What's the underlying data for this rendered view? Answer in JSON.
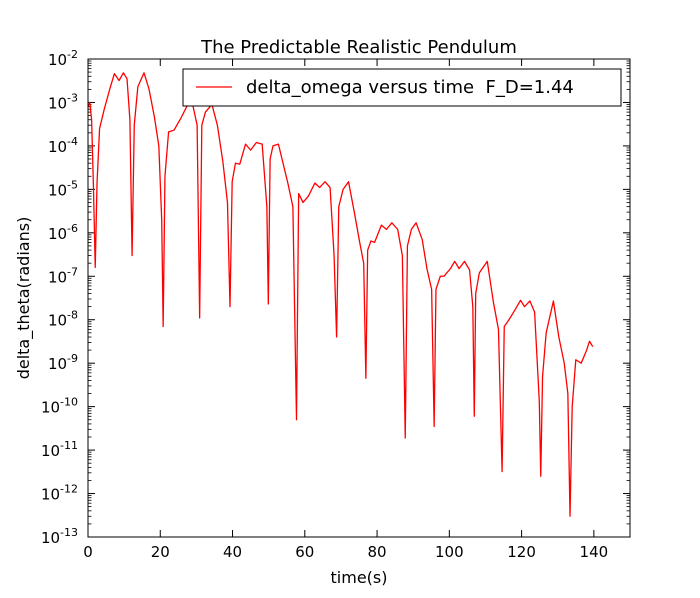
{
  "chart_data": {
    "type": "line",
    "title": "The Predictable Realistic Pendulum",
    "xlabel": "time(s)",
    "ylabel": "delta_theta(radians)",
    "xlim": [
      0,
      150
    ],
    "ylim": [
      1e-13,
      0.01
    ],
    "yscale": "log",
    "grid": false,
    "legend_position": "top-right",
    "xticks": [
      {
        "value": 0,
        "label": "0"
      },
      {
        "value": 20,
        "label": "20"
      },
      {
        "value": 40,
        "label": "40"
      },
      {
        "value": 60,
        "label": "60"
      },
      {
        "value": 80,
        "label": "80"
      },
      {
        "value": 100,
        "label": "100"
      },
      {
        "value": 120,
        "label": "120"
      },
      {
        "value": 140,
        "label": "140"
      }
    ],
    "yticks": [
      {
        "exp": -13,
        "base": "10",
        "sup": "-13"
      },
      {
        "exp": -12,
        "base": "10",
        "sup": "-12"
      },
      {
        "exp": -11,
        "base": "10",
        "sup": "-11"
      },
      {
        "exp": -10,
        "base": "10",
        "sup": "-10"
      },
      {
        "exp": -9,
        "base": "10",
        "sup": "-9"
      },
      {
        "exp": -8,
        "base": "10",
        "sup": "-8"
      },
      {
        "exp": -7,
        "base": "10",
        "sup": "-7"
      },
      {
        "exp": -6,
        "base": "10",
        "sup": "-6"
      },
      {
        "exp": -5,
        "base": "10",
        "sup": "-5"
      },
      {
        "exp": -4,
        "base": "10",
        "sup": "-4"
      },
      {
        "exp": -3,
        "base": "10",
        "sup": "-3"
      },
      {
        "exp": -2,
        "base": "10",
        "sup": "-2"
      }
    ],
    "series": [
      {
        "name": "delta_omega versus time  F_D=1.44",
        "color": "#ff0000",
        "points": [
          [
            0,
            0.0008
          ],
          [
            0.5,
            0.001
          ],
          [
            1.0,
            0.0004
          ],
          [
            1.5,
            1.2e-05
          ],
          [
            2.0,
            1.6e-07
          ],
          [
            2.5,
            1.4e-05
          ],
          [
            3.2,
            0.00025
          ],
          [
            4.5,
            0.0007
          ],
          [
            6.0,
            0.002
          ],
          [
            7.3,
            0.0046
          ],
          [
            8.6,
            0.0032
          ],
          [
            9.8,
            0.0048
          ],
          [
            10.8,
            0.0035
          ],
          [
            11.6,
            0.0004
          ],
          [
            12.2,
            3e-07
          ],
          [
            12.8,
            0.0003
          ],
          [
            13.8,
            0.0023
          ],
          [
            15.5,
            0.0048
          ],
          [
            16.9,
            0.002
          ],
          [
            18.4,
            0.00045
          ],
          [
            19.6,
            0.0001
          ],
          [
            20.4,
            2e-06
          ],
          [
            20.8,
            7e-09
          ],
          [
            21.3,
            2e-05
          ],
          [
            22.3,
            0.00021
          ],
          [
            23.8,
            0.00023
          ],
          [
            25.8,
            0.00045
          ],
          [
            27.5,
            0.00086
          ],
          [
            29.0,
            0.00087
          ],
          [
            30.2,
            0.0003
          ],
          [
            30.9,
            1.1e-08
          ],
          [
            31.5,
            0.0003
          ],
          [
            32.5,
            0.0006
          ],
          [
            34.3,
            0.0009
          ],
          [
            35.8,
            0.0003
          ],
          [
            37.3,
            4.5e-05
          ],
          [
            38.6,
            5e-06
          ],
          [
            39.3,
            2e-08
          ],
          [
            39.9,
            1.5e-05
          ],
          [
            40.8,
            4e-05
          ],
          [
            42.0,
            3.8e-05
          ],
          [
            43.6,
            0.00011
          ],
          [
            45.0,
            8e-05
          ],
          [
            46.6,
            0.00012
          ],
          [
            48.2,
            0.00011
          ],
          [
            49.5,
            4e-06
          ],
          [
            49.9,
            2.3e-08
          ],
          [
            50.4,
            5e-05
          ],
          [
            51.2,
            0.0001
          ],
          [
            52.7,
            0.00011
          ],
          [
            55.3,
            1.4e-05
          ],
          [
            56.7,
            4e-06
          ],
          [
            57.7,
            5e-11
          ],
          [
            58.3,
            8e-06
          ],
          [
            59.5,
            5e-06
          ],
          [
            61.0,
            7e-06
          ],
          [
            62.8,
            1.4e-05
          ],
          [
            64.1,
            1.1e-05
          ],
          [
            65.6,
            1.5e-05
          ],
          [
            67.0,
            1.1e-05
          ],
          [
            68.1,
            3e-07
          ],
          [
            68.8,
            4e-09
          ],
          [
            69.4,
            4e-06
          ],
          [
            70.6,
            1e-05
          ],
          [
            72.1,
            1.5e-05
          ],
          [
            73.7,
            3e-06
          ],
          [
            75.2,
            6e-07
          ],
          [
            76.3,
            2e-07
          ],
          [
            76.9,
            4.5e-10
          ],
          [
            77.4,
            4e-07
          ],
          [
            78.3,
            6.5e-07
          ],
          [
            79.3,
            6e-07
          ],
          [
            81.2,
            1.5e-06
          ],
          [
            82.6,
            1.2e-06
          ],
          [
            84.1,
            1.7e-06
          ],
          [
            85.7,
            1.2e-06
          ],
          [
            87.0,
            3e-07
          ],
          [
            87.8,
            1.9e-11
          ],
          [
            88.4,
            5e-07
          ],
          [
            89.5,
            1.2e-06
          ],
          [
            90.8,
            1.7e-06
          ],
          [
            92.5,
            7e-07
          ],
          [
            93.8,
            1.5e-07
          ],
          [
            95.1,
            5e-08
          ],
          [
            95.8,
            3.5e-11
          ],
          [
            96.3,
            5e-08
          ],
          [
            97.5,
            1e-07
          ],
          [
            98.5,
            1e-07
          ],
          [
            100.3,
            1.5e-07
          ],
          [
            101.5,
            2.2e-07
          ],
          [
            102.7,
            1.5e-07
          ],
          [
            104.2,
            2.2e-07
          ],
          [
            105.6,
            1.4e-07
          ],
          [
            106.5,
            2e-08
          ],
          [
            106.9,
            6e-11
          ],
          [
            107.3,
            4e-08
          ],
          [
            108.3,
            1.2e-07
          ],
          [
            110.5,
            2.2e-07
          ],
          [
            112.2,
            2.5e-08
          ],
          [
            113.6,
            6e-09
          ],
          [
            114.6,
            3.2e-12
          ],
          [
            115.2,
            7e-09
          ],
          [
            116.5,
            1e-08
          ],
          [
            118.2,
            1.7e-08
          ],
          [
            119.7,
            2.8e-08
          ],
          [
            120.8,
            2e-08
          ],
          [
            122.3,
            2.7e-08
          ],
          [
            123.6,
            1.5e-08
          ],
          [
            124.9,
            1.3e-10
          ],
          [
            125.3,
            2.5e-12
          ],
          [
            125.8,
            5e-10
          ],
          [
            126.8,
            5e-09
          ],
          [
            128.8,
            2.7e-08
          ],
          [
            130.3,
            4e-09
          ],
          [
            131.8,
            1e-09
          ],
          [
            132.8,
            2e-10
          ],
          [
            133.4,
            3e-13
          ],
          [
            134.0,
            1e-10
          ],
          [
            135.0,
            1.2e-09
          ],
          [
            136.5,
            1e-09
          ],
          [
            138.0,
            2e-09
          ],
          [
            138.8,
            3.2e-09
          ],
          [
            139.7,
            2.4e-09
          ]
        ]
      }
    ]
  }
}
